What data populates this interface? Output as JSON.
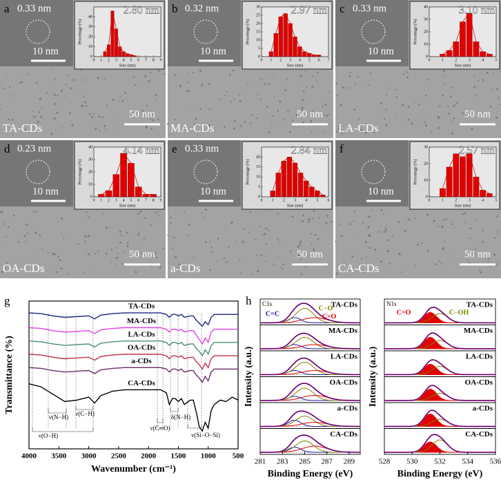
{
  "tem_panels": [
    {
      "letter": "a",
      "sample": "TA-CDs",
      "lattice": "0.33 nm",
      "inset_scale": "10 nm",
      "scale": "50 nm"
    },
    {
      "letter": "b",
      "sample": "MA-CDs",
      "lattice": "0.32 nm",
      "inset_scale": "10 nm",
      "scale": "50 nm"
    },
    {
      "letter": "c",
      "sample": "LA-CDs",
      "lattice": "0.33 nm",
      "inset_scale": "10 nm",
      "scale": "50 nm"
    },
    {
      "letter": "d",
      "sample": "OA-CDs",
      "lattice": "0.23 nm",
      "inset_scale": "10 nm",
      "scale": "50 nm"
    },
    {
      "letter": "e",
      "sample": "a-CDs",
      "lattice": "0.33 nm",
      "inset_scale": "10 nm",
      "scale": "50 nm"
    },
    {
      "letter": "f",
      "sample": "CA-CDs",
      "lattice": "",
      "inset_scale": "10 nm",
      "scale": "50 nm"
    }
  ],
  "chart_data": [
    {
      "type": "bar",
      "annotation": "2.80 nm",
      "xlabel": "Size (nm)",
      "ylabel": "Percentage (%)",
      "color": "#e00000",
      "x": [
        1.5,
        2,
        2.5,
        3,
        3.5,
        4,
        4.5,
        5,
        5.5
      ],
      "values": [
        5,
        12,
        46,
        28,
        10,
        5,
        3,
        2,
        1
      ],
      "xlim": [
        0,
        9
      ],
      "xticks": [
        0,
        1,
        2,
        3,
        4,
        5,
        6,
        7,
        8,
        9
      ],
      "ylim": [
        0,
        50
      ],
      "yticks": [
        0,
        10,
        20,
        30,
        40
      ]
    },
    {
      "type": "bar",
      "annotation": "2.97 nm",
      "xlabel": "Size (nm)",
      "ylabel": "Percentage (%)",
      "color": "#e00000",
      "x": [
        1,
        1.5,
        2,
        2.5,
        3,
        3.5,
        4,
        4.5,
        5,
        5.5,
        6
      ],
      "values": [
        3,
        14,
        24,
        26,
        20,
        12,
        6,
        3,
        2,
        1,
        1
      ],
      "xlim": [
        0,
        7
      ],
      "xticks": [
        0,
        1,
        2,
        3,
        4,
        5,
        6,
        7
      ],
      "ylim": [
        0,
        30
      ],
      "yticks": [
        0,
        5,
        10,
        15,
        20,
        25,
        30
      ]
    },
    {
      "type": "bar",
      "annotation": "3.10 nm",
      "xlabel": "Size (nm)",
      "ylabel": "Percentage (%)",
      "color": "#e00000",
      "x": [
        1,
        1.5,
        2,
        2.5,
        3,
        3.5,
        4,
        4.5
      ],
      "values": [
        2,
        5,
        12,
        28,
        35,
        12,
        4,
        2
      ],
      "xlim": [
        0,
        5
      ],
      "xticks": [
        0,
        1,
        2,
        3,
        4,
        5
      ],
      "ylim": [
        0,
        40
      ],
      "yticks": [
        0,
        10,
        20,
        30,
        40
      ]
    },
    {
      "type": "bar",
      "annotation": "4.14 nm",
      "xlabel": "Size (nm)",
      "ylabel": "Percentage (%)",
      "color": "#e00000",
      "x": [
        1,
        2,
        3,
        4,
        5,
        6,
        7,
        8
      ],
      "values": [
        2,
        5,
        18,
        35,
        27,
        8,
        2,
        2
      ],
      "xlim": [
        0,
        9
      ],
      "xticks": [
        0,
        1,
        2,
        3,
        4,
        5,
        6,
        7,
        8,
        9
      ],
      "ylim": [
        0,
        40
      ],
      "yticks": [
        0,
        10,
        20,
        30,
        40
      ]
    },
    {
      "type": "bar",
      "annotation": "2.84 nm",
      "xlabel": "Size (nm)",
      "ylabel": "Percentage (%)",
      "color": "#e00000",
      "x": [
        1,
        1.5,
        2,
        2.5,
        3,
        3.5,
        4,
        4.5,
        5,
        5.5
      ],
      "values": [
        3,
        12,
        18,
        20,
        17,
        12,
        8,
        5,
        3,
        1
      ],
      "xlim": [
        0,
        6
      ],
      "xticks": [
        0,
        1,
        2,
        3,
        4,
        5,
        6
      ],
      "ylim": [
        0,
        25
      ],
      "yticks": [
        0,
        5,
        10,
        15,
        20
      ]
    },
    {
      "type": "bar",
      "annotation": "2.57 nm",
      "xlabel": "Size (nm)",
      "ylabel": "Percentage (%)",
      "color": "#e00000",
      "x": [
        1,
        1.5,
        2,
        2.5,
        3,
        3.5,
        4,
        4.5
      ],
      "values": [
        5,
        18,
        26,
        24,
        26,
        12,
        4,
        2
      ],
      "xlim": [
        0,
        5
      ],
      "xticks": [
        0,
        1,
        2,
        3,
        4,
        5
      ],
      "ylim": [
        0,
        30
      ],
      "yticks": [
        0,
        10,
        20,
        30
      ]
    },
    {
      "type": "line",
      "letter": "g",
      "xlabel": "Wavenumber (cm⁻¹)",
      "ylabel": "Transmittance (%)",
      "xlim": [
        4000,
        500
      ],
      "xticks": [
        4000,
        3500,
        3000,
        2500,
        2000,
        1500,
        1000,
        500
      ],
      "ylim": [
        0,
        100
      ],
      "annotations": [
        "ν(O−H)",
        "ν(N−H)",
        "ν(C−H)",
        "ν(C═O)",
        "δ(N−H)",
        "ν(Si−O−Si)"
      ],
      "x": [
        4000,
        3800,
        3600,
        3400,
        3200,
        3000,
        2900,
        2800,
        2600,
        2400,
        2200,
        2000,
        1800,
        1700,
        1650,
        1600,
        1550,
        1500,
        1450,
        1400,
        1300,
        1250,
        1200,
        1150,
        1100,
        1050,
        1000,
        950,
        900,
        800,
        700,
        600,
        500
      ],
      "series": [
        {
          "name": "TA-CDs",
          "color": "#1a237e",
          "values": [
            92,
            91.5,
            90,
            89,
            89.5,
            90,
            88,
            90.5,
            91.5,
            92,
            92,
            92,
            92,
            91,
            89,
            91,
            91,
            90,
            91,
            89,
            90,
            90,
            87,
            85,
            83,
            86,
            84,
            89,
            91,
            91,
            91,
            91,
            91
          ]
        },
        {
          "name": "MA-CDs",
          "color": "#e040e0",
          "values": [
            82,
            81.5,
            80,
            79,
            79.5,
            80,
            78,
            80.5,
            81.5,
            82,
            82,
            82,
            82,
            81,
            79,
            81,
            81,
            80,
            81,
            79,
            80,
            80,
            77,
            74,
            71,
            75,
            72,
            79,
            81,
            81,
            81,
            81,
            81
          ]
        },
        {
          "name": "LA-CDs",
          "color": "#4a8a7a",
          "values": [
            73,
            72.5,
            71,
            70,
            70.5,
            71,
            69,
            71.5,
            72.5,
            73,
            73,
            73,
            73,
            72,
            70,
            72,
            72,
            71,
            72,
            70,
            71,
            71,
            68,
            66,
            63,
            67,
            64,
            70,
            72,
            72,
            72,
            72,
            72
          ]
        },
        {
          "name": "OA-CDs",
          "color": "#c0304a",
          "values": [
            64,
            63.5,
            62,
            61,
            61.5,
            62,
            60,
            62.5,
            63.5,
            64,
            64,
            64,
            64,
            63,
            61,
            63,
            63,
            62,
            63,
            61,
            62,
            62,
            59,
            57,
            54,
            58,
            55,
            61,
            63,
            63,
            63,
            63,
            63
          ]
        },
        {
          "name": "a-CDs",
          "color": "#6a2a6a",
          "values": [
            55,
            54.5,
            53,
            52,
            52.5,
            53,
            51,
            53.5,
            54.5,
            55,
            55,
            55,
            55,
            54,
            52,
            54,
            54,
            53,
            54,
            52,
            53,
            53,
            50,
            48,
            45,
            49,
            46,
            52,
            54,
            54,
            54,
            54,
            54
          ]
        },
        {
          "name": "CA-CDs",
          "color": "#000000",
          "values": [
            44,
            42,
            37,
            32,
            33,
            35,
            31,
            36,
            39,
            40,
            40,
            40,
            40,
            38,
            30,
            34,
            34,
            32,
            34,
            30,
            33,
            33,
            25,
            15,
            12,
            18,
            14,
            26,
            30,
            33,
            32,
            35,
            33
          ]
        }
      ]
    },
    {
      "type": "xps",
      "letter": "h",
      "core_level": "C1s",
      "xlabel": "Binding Energy (eV)",
      "ylabel": "Intensity (a.u.)",
      "xlim": [
        281,
        290
      ],
      "xticks": [
        281,
        283,
        285,
        287,
        289
      ],
      "components": [
        {
          "name": "C=C",
          "color": "#1a1aa0",
          "center": 284.1,
          "width": 0.55,
          "filled": false
        },
        {
          "name": "C−O",
          "color": "#808000",
          "center": 285.0,
          "width": 0.8,
          "filled": false
        },
        {
          "name": "C=O",
          "color": "#e00000",
          "center": 285.9,
          "width": 1.1,
          "filled": false
        }
      ],
      "series": [
        {
          "name": "TA-CDs",
          "values": [
            0.25,
            0.7,
            0.25
          ]
        },
        {
          "name": "MA-CDs",
          "values": [
            0.2,
            0.55,
            0.2
          ]
        },
        {
          "name": "LA-CDs",
          "values": [
            0.2,
            0.6,
            0.2
          ]
        },
        {
          "name": "OA-CDs",
          "values": [
            0.2,
            0.6,
            0.25
          ]
        },
        {
          "name": "a-CDs",
          "values": [
            0.3,
            0.5,
            0.2
          ]
        },
        {
          "name": "CA-CDs",
          "values": [
            0.25,
            0.55,
            0.3
          ]
        }
      ]
    },
    {
      "type": "xps",
      "core_level": "N1s",
      "xlabel": "Binding Energy (eV)",
      "ylabel": "Intensity (a.u.)",
      "xlim": [
        528,
        536
      ],
      "xticks": [
        528,
        530,
        532,
        534,
        536
      ],
      "components": [
        {
          "name": "C=O",
          "color": "#e00000",
          "center": 531.3,
          "width": 0.45,
          "filled": true
        },
        {
          "name": "C−OH",
          "color": "#808000",
          "center": 532.0,
          "width": 0.55,
          "filled": false
        }
      ],
      "series": [
        {
          "name": "TA-CDs",
          "values": [
            0.5,
            0.45
          ]
        },
        {
          "name": "MA-CDs",
          "values": [
            0.55,
            0.4
          ]
        },
        {
          "name": "LA-CDs",
          "values": [
            0.5,
            0.4
          ]
        },
        {
          "name": "OA-CDs",
          "values": [
            0.55,
            0.35
          ]
        },
        {
          "name": "a-CDs",
          "values": [
            0.6,
            0.35
          ]
        },
        {
          "name": "CA-CDs",
          "values": [
            0.5,
            0.6
          ]
        }
      ]
    }
  ]
}
